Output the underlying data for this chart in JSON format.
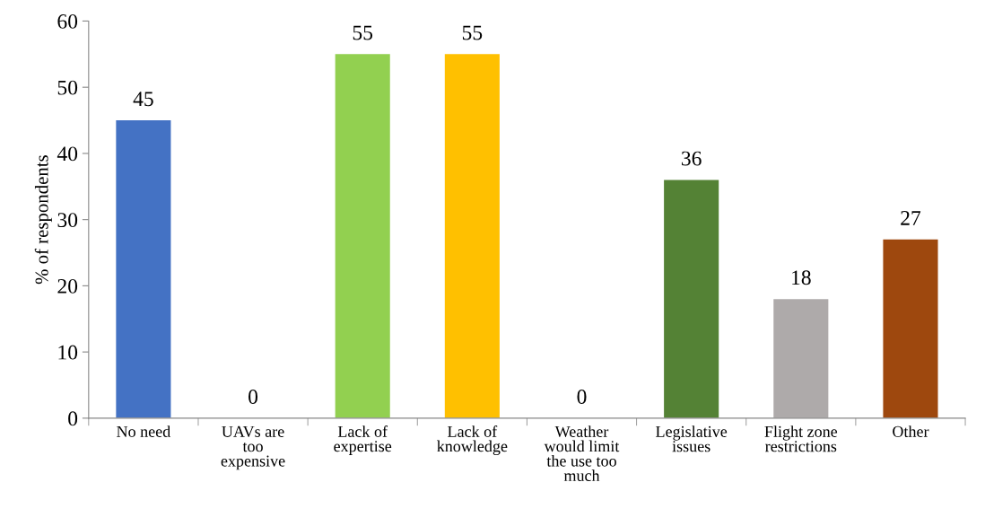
{
  "chart_data": {
    "type": "bar",
    "ylabel": "% of respondents",
    "categories": [
      "No need",
      "UAVs are\ntoo\nexpensive",
      "Lack of\nexpertise",
      "Lack of\nknowledge",
      "Weather\nwould limit\nthe use too\nmuch",
      "Legislative\nissues",
      "Flight zone\nrestrictions",
      "Other"
    ],
    "values": [
      45,
      0,
      55,
      55,
      0,
      36,
      18,
      27
    ],
    "colors": [
      "#4472c4",
      "#ed7d31",
      "#92d050",
      "#ffc000",
      "#5b9bd5",
      "#548235",
      "#aeaaaa",
      "#9e480e"
    ],
    "ylim": [
      0,
      60
    ],
    "yticks": [
      0,
      10,
      20,
      30,
      40,
      50,
      60
    ],
    "data_labels": true,
    "grid": false,
    "legend": false
  }
}
